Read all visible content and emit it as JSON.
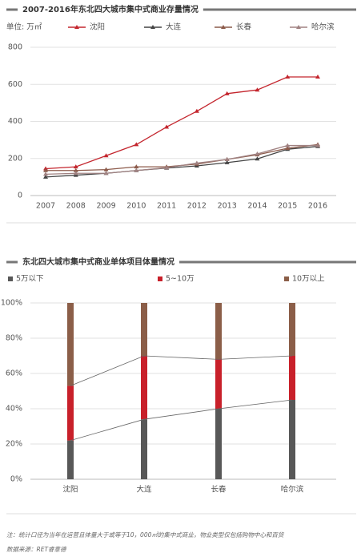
{
  "chart_data": [
    {
      "type": "line",
      "title": "2007-2016年东北四大城市集中式商业存量情况",
      "y_label": "单位: 万㎡",
      "categories": [
        "2007",
        "2008",
        "2009",
        "2010",
        "2011",
        "2012",
        "2013",
        "2014",
        "2015",
        "2016"
      ],
      "series": [
        {
          "name": "沈阳",
          "color": "#c4262e",
          "values": [
            145,
            155,
            215,
            275,
            370,
            455,
            550,
            570,
            640,
            640
          ]
        },
        {
          "name": "大连",
          "color": "#444444",
          "values": [
            100,
            110,
            120,
            135,
            148,
            160,
            178,
            198,
            250,
            265
          ]
        },
        {
          "name": "长春",
          "color": "#8c5a4a",
          "values": [
            135,
            135,
            140,
            155,
            155,
            170,
            195,
            220,
            255,
            275
          ]
        },
        {
          "name": "哈尔滨",
          "color": "#a08282",
          "values": [
            115,
            120,
            120,
            135,
            150,
            175,
            195,
            225,
            270,
            270
          ]
        }
      ],
      "ylim": [
        0,
        800
      ],
      "yticks": [
        0,
        200,
        400,
        600,
        800
      ],
      "grid": true
    },
    {
      "type": "bar",
      "stacked": true,
      "title": "东北四大城市集中式商业单体项目体量情况",
      "categories": [
        "沈阳",
        "大连",
        "长春",
        "哈尔滨"
      ],
      "series": [
        {
          "name": "5万以下",
          "color": "#585858",
          "values": [
            22,
            34,
            40,
            45
          ]
        },
        {
          "name": "5~10万",
          "color": "#c8202a",
          "values": [
            31,
            36,
            28,
            25
          ]
        },
        {
          "name": "10万以上",
          "color": "#8b5e48",
          "values": [
            47,
            30,
            32,
            30
          ]
        }
      ],
      "ylim": [
        0,
        100
      ],
      "yticks": [
        {
          "value": 0,
          "label": "0%"
        },
        {
          "value": 20,
          "label": "20%"
        },
        {
          "value": 40,
          "label": "40%"
        },
        {
          "value": 60,
          "label": "60%"
        },
        {
          "value": 80,
          "label": "80%"
        },
        {
          "value": 100,
          "label": "100%"
        }
      ],
      "grid": true
    }
  ],
  "notes": [
    "注：统计口径为当年在运营且体量大于或等于10，000㎡的集中式商业，物业类型仅包括购物中心和百货",
    "数据来源：RET睿意德"
  ]
}
